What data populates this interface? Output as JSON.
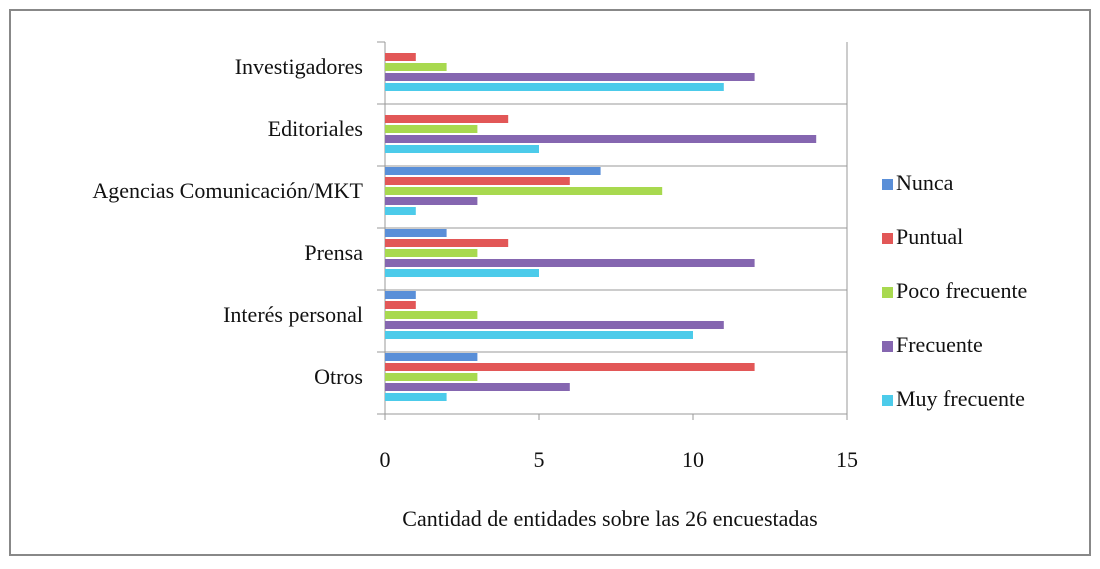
{
  "chart_data": {
    "type": "hbar",
    "categories": [
      "Investigadores",
      "Editoriales",
      "Agencias Comunicación/MKT",
      "Prensa",
      "Interés personal",
      "Otros"
    ],
    "series": [
      {
        "name": "Nunca",
        "color": "#5a8fd8",
        "values": [
          0,
          0,
          7,
          2,
          1,
          3
        ]
      },
      {
        "name": "Puntual",
        "color": "#e25757",
        "values": [
          1,
          4,
          6,
          4,
          1,
          12
        ]
      },
      {
        "name": "Poco frecuente",
        "color": "#a8d94f",
        "values": [
          2,
          3,
          9,
          3,
          3,
          3
        ]
      },
      {
        "name": "Frecuente",
        "color": "#8566b0",
        "values": [
          12,
          14,
          3,
          12,
          11,
          6
        ]
      },
      {
        "name": "Muy frecuente",
        "color": "#4ccbea",
        "values": [
          11,
          5,
          1,
          5,
          10,
          2
        ]
      }
    ],
    "xlabel": "Cantidad de entidades sobre las 26 encuestadas",
    "xlim": [
      0,
      15
    ],
    "xticks": [
      0,
      5,
      10,
      15
    ],
    "legend": "right"
  }
}
